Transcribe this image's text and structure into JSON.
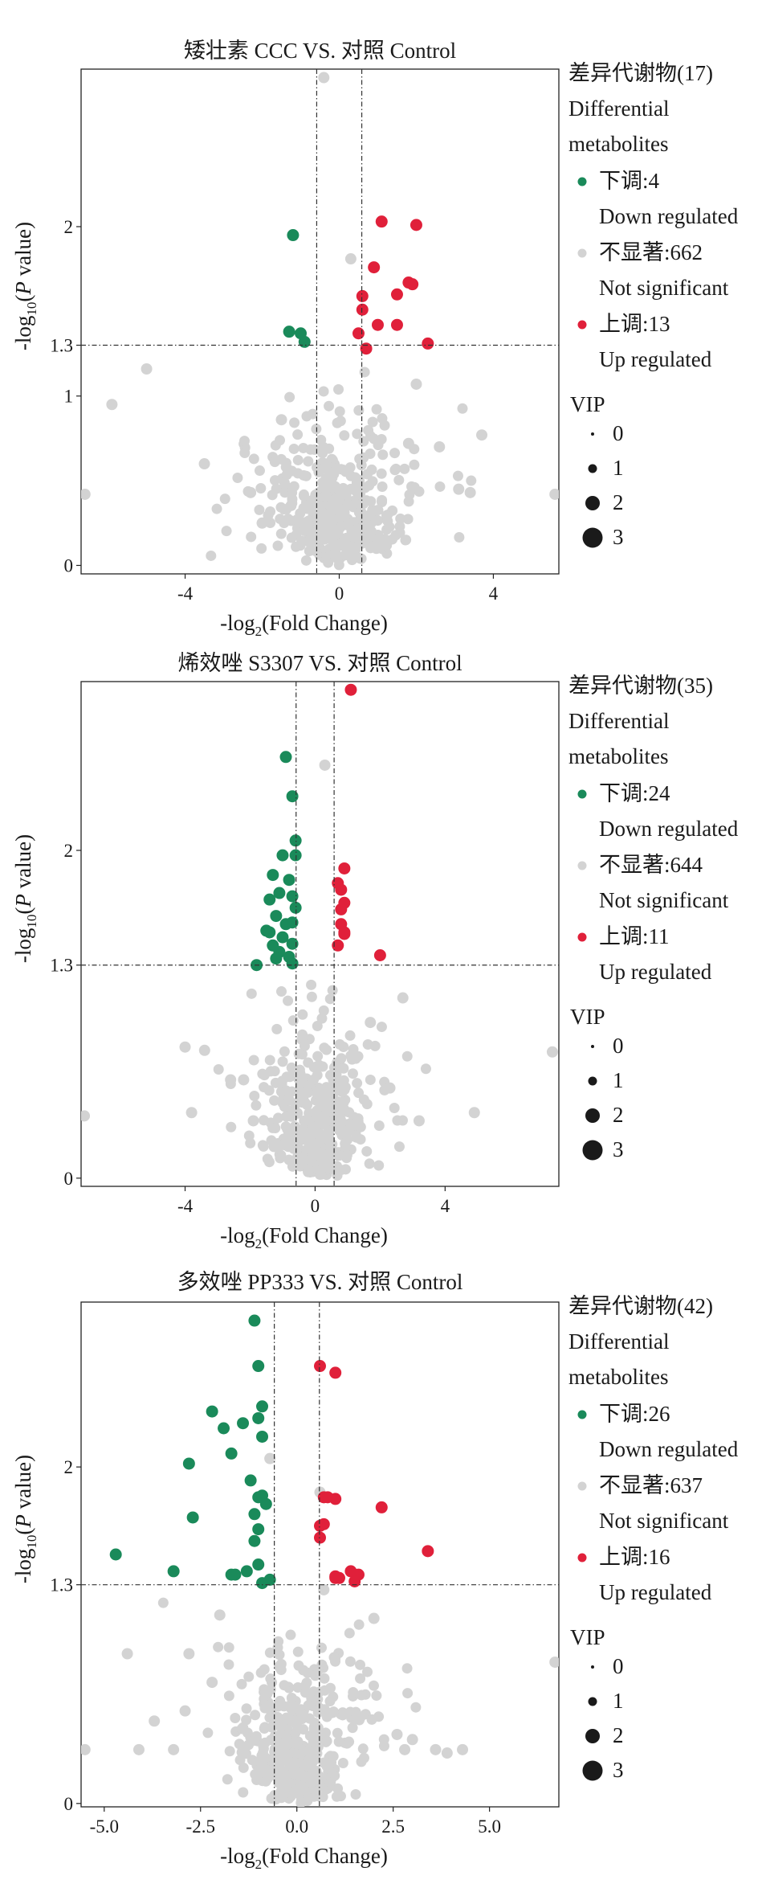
{
  "colors": {
    "down": "#1a8a5a",
    "ns": "#d3d3d3",
    "up": "#e0203a",
    "axis": "#222222",
    "legend_dot": "#1a1a1a"
  },
  "chart_data": [
    {
      "type": "scatter",
      "title": "矮壮素 CCC VS. 对照 Control",
      "xlabel_pre": "-log",
      "xlabel_sub": "2",
      "xlabel_post": "(Fold Change)",
      "ylabel_pre": "-log",
      "ylabel_sub": "10",
      "ylabel_post": "(",
      "ylabel_italic": "P",
      "ylabel_end": " value)",
      "xlim": [
        -6.7,
        5.7
      ],
      "ylim": [
        -0.05,
        2.93
      ],
      "xticks": [
        {
          "v": -4,
          "label": "-4"
        },
        {
          "v": 0,
          "label": "0"
        },
        {
          "v": 4,
          "label": "4"
        }
      ],
      "yticks": [
        {
          "v": 0,
          "label": "0"
        },
        {
          "v": 1,
          "label": "1"
        },
        {
          "v": 1.3,
          "label": "1.3"
        },
        {
          "v": 2,
          "label": "2"
        }
      ],
      "vlines": [
        -0.585,
        0.585
      ],
      "hline": 1.3,
      "legend": {
        "title1": "差异代谢物(17)",
        "title2": "Differential",
        "title3": "metabolites",
        "items": [
          {
            "label_cn": "下调:4",
            "label_en": "Down regulated",
            "key": "down"
          },
          {
            "label_cn": "不显著:662",
            "label_en": "Not significant",
            "key": "ns"
          },
          {
            "label_cn": "上调:13",
            "label_en": "Up regulated",
            "key": "up"
          }
        ],
        "vip_title": "VIP",
        "vip": [
          {
            "label": "0",
            "value": 0
          },
          {
            "label": "1",
            "value": 1
          },
          {
            "label": "2",
            "value": 2
          },
          {
            "label": "3",
            "value": 3
          }
        ]
      },
      "down": [
        [
          -1.2,
          1.95
        ],
        [
          -1.3,
          1.38
        ],
        [
          -1.0,
          1.37
        ],
        [
          -0.9,
          1.32
        ]
      ],
      "up": [
        [
          1.1,
          2.03
        ],
        [
          2.0,
          2.01
        ],
        [
          0.9,
          1.76
        ],
        [
          1.5,
          1.6
        ],
        [
          1.9,
          1.66
        ],
        [
          1.8,
          1.67
        ],
        [
          0.6,
          1.59
        ],
        [
          0.6,
          1.51
        ],
        [
          1.5,
          1.42
        ],
        [
          0.5,
          1.37
        ],
        [
          0.7,
          1.28
        ],
        [
          2.3,
          1.31
        ],
        [
          1.0,
          1.42
        ]
      ],
      "ns_extra": [
        [
          -0.4,
          2.88
        ],
        [
          0.3,
          1.81
        ],
        [
          -5.0,
          1.16
        ],
        [
          -5.9,
          0.95
        ],
        [
          -6.6,
          0.42
        ],
        [
          5.6,
          0.42
        ],
        [
          3.7,
          0.77
        ],
        [
          3.4,
          0.43
        ],
        [
          3.1,
          0.45
        ],
        [
          2.0,
          1.07
        ],
        [
          -2.3,
          0.43
        ],
        [
          2.6,
          0.7
        ],
        [
          -1.5,
          0.86
        ],
        [
          -3.5,
          0.6
        ],
        [
          -2.0,
          0.25
        ],
        [
          1.8,
          0.72
        ]
      ],
      "ns_cloud": {
        "center": 0.0,
        "xspread": 1.2,
        "ystretch": 1.1,
        "count": 420,
        "seed": 11
      }
    },
    {
      "type": "scatter",
      "title": "烯效唑 S3307 VS. 对照 Control",
      "xlabel_pre": "-log",
      "xlabel_sub": "2",
      "xlabel_post": "(Fold Change)",
      "ylabel_pre": "-log",
      "ylabel_sub": "10",
      "ylabel_post": "(",
      "ylabel_italic": "P",
      "ylabel_end": " value)",
      "xlim": [
        -7.2,
        7.5
      ],
      "ylim": [
        -0.05,
        3.03
      ],
      "xticks": [
        {
          "v": -4,
          "label": "-4"
        },
        {
          "v": 0,
          "label": "0"
        },
        {
          "v": 4,
          "label": "4"
        }
      ],
      "yticks": [
        {
          "v": 0,
          "label": "0"
        },
        {
          "v": 1.3,
          "label": "1.3"
        },
        {
          "v": 2,
          "label": "2"
        }
      ],
      "vlines": [
        -0.585,
        0.585
      ],
      "hline": 1.3,
      "legend": {
        "title1": "差异代谢物(35)",
        "title2": "Differential",
        "title3": "metabolites",
        "items": [
          {
            "label_cn": "下调:24",
            "label_en": "Down regulated",
            "key": "down"
          },
          {
            "label_cn": "不显著:644",
            "label_en": "Not significant",
            "key": "ns"
          },
          {
            "label_cn": "上调:11",
            "label_en": "Up regulated",
            "key": "up"
          }
        ],
        "vip_title": "VIP",
        "vip": [
          {
            "label": "0",
            "value": 0
          },
          {
            "label": "1",
            "value": 1
          },
          {
            "label": "2",
            "value": 2
          },
          {
            "label": "3",
            "value": 3
          }
        ]
      },
      "down": [
        [
          -0.9,
          2.57
        ],
        [
          -0.7,
          2.33
        ],
        [
          -0.6,
          2.06
        ],
        [
          -1.0,
          1.97
        ],
        [
          -0.6,
          1.97
        ],
        [
          -1.3,
          1.85
        ],
        [
          -0.8,
          1.82
        ],
        [
          -1.1,
          1.74
        ],
        [
          -1.4,
          1.7
        ],
        [
          -0.7,
          1.72
        ],
        [
          -1.2,
          1.6
        ],
        [
          -0.9,
          1.55
        ],
        [
          -0.7,
          1.56
        ],
        [
          -1.5,
          1.51
        ],
        [
          -1.0,
          1.47
        ],
        [
          -1.3,
          1.42
        ],
        [
          -0.7,
          1.43
        ],
        [
          -1.1,
          1.38
        ],
        [
          -0.8,
          1.35
        ],
        [
          -0.7,
          1.31
        ],
        [
          -1.8,
          1.3
        ],
        [
          -1.2,
          1.34
        ],
        [
          -1.4,
          1.5
        ],
        [
          -0.6,
          1.65
        ]
      ],
      "up": [
        [
          1.1,
          2.98
        ],
        [
          0.9,
          1.89
        ],
        [
          0.9,
          1.68
        ],
        [
          0.8,
          1.64
        ],
        [
          0.8,
          1.55
        ],
        [
          0.9,
          1.49
        ],
        [
          0.7,
          1.42
        ],
        [
          2.0,
          1.36
        ],
        [
          0.8,
          1.76
        ],
        [
          0.7,
          1.8
        ],
        [
          0.9,
          1.5
        ]
      ],
      "ns_extra": [
        [
          0.3,
          2.52
        ],
        [
          -7.1,
          0.38
        ],
        [
          7.3,
          0.77
        ],
        [
          4.9,
          0.4
        ],
        [
          3.2,
          0.35
        ],
        [
          -3.8,
          0.4
        ],
        [
          -3.4,
          0.78
        ],
        [
          -2.2,
          0.6
        ],
        [
          -4.0,
          0.8
        ],
        [
          2.7,
          1.1
        ],
        [
          -2.6,
          0.6
        ],
        [
          1.7,
          0.95
        ],
        [
          -1.9,
          0.35
        ],
        [
          2.3,
          0.55
        ]
      ],
      "ns_cloud": {
        "center": 0.0,
        "xspread": 1.05,
        "ystretch": 1.2,
        "count": 420,
        "seed": 23
      }
    },
    {
      "type": "scatter",
      "title": "多效唑 PP333 VS. 对照 Control",
      "xlabel_pre": "-log",
      "xlabel_sub": "2",
      "xlabel_post": "(Fold Change)",
      "ylabel_pre": "-log",
      "ylabel_sub": "10",
      "ylabel_post": "(",
      "ylabel_italic": "P",
      "ylabel_end": " value)",
      "xlim": [
        -5.6,
        6.8
      ],
      "ylim": [
        -0.02,
        2.98
      ],
      "xticks": [
        {
          "v": -5,
          "label": "-5.0"
        },
        {
          "v": -2.5,
          "label": "-2.5"
        },
        {
          "v": 0,
          "label": "0.0"
        },
        {
          "v": 2.5,
          "label": "2.5"
        },
        {
          "v": 5,
          "label": "5.0"
        }
      ],
      "yticks": [
        {
          "v": 0,
          "label": "0"
        },
        {
          "v": 1.3,
          "label": "1.3"
        },
        {
          "v": 2,
          "label": "2"
        }
      ],
      "vlines": [
        -0.585,
        0.585
      ],
      "hline": 1.3,
      "legend": {
        "title1": "差异代谢物(42)",
        "title2": "Differential",
        "title3": "metabolites",
        "items": [
          {
            "label_cn": "下调:26",
            "label_en": "Down regulated",
            "key": "down"
          },
          {
            "label_cn": "不显著:637",
            "label_en": "Not significant",
            "key": "ns"
          },
          {
            "label_cn": "上调:16",
            "label_en": "Up regulated",
            "key": "up"
          }
        ],
        "vip_title": "VIP",
        "vip": [
          {
            "label": "0",
            "value": 0
          },
          {
            "label": "1",
            "value": 1
          },
          {
            "label": "2",
            "value": 2
          },
          {
            "label": "3",
            "value": 3
          }
        ]
      },
      "down": [
        [
          -1.1,
          2.87
        ],
        [
          -1.0,
          2.6
        ],
        [
          -0.9,
          2.36
        ],
        [
          -2.2,
          2.33
        ],
        [
          -1.4,
          2.26
        ],
        [
          -1.0,
          2.29
        ],
        [
          -1.9,
          2.23
        ],
        [
          -1.7,
          2.08
        ],
        [
          -0.9,
          2.18
        ],
        [
          -2.8,
          2.02
        ],
        [
          -1.2,
          1.92
        ],
        [
          -1.0,
          1.82
        ],
        [
          -0.9,
          1.83
        ],
        [
          -2.7,
          1.7
        ],
        [
          -1.1,
          1.72
        ],
        [
          -1.0,
          1.63
        ],
        [
          -1.1,
          1.56
        ],
        [
          -4.7,
          1.48
        ],
        [
          -3.2,
          1.38
        ],
        [
          -1.3,
          1.38
        ],
        [
          -1.7,
          1.36
        ],
        [
          -1.6,
          1.36
        ],
        [
          -0.9,
          1.31
        ],
        [
          -0.7,
          1.33
        ],
        [
          -1.0,
          1.42
        ],
        [
          -0.8,
          1.78
        ]
      ],
      "up": [
        [
          0.6,
          2.6
        ],
        [
          1.0,
          2.56
        ],
        [
          0.8,
          1.82
        ],
        [
          1.0,
          1.81
        ],
        [
          2.2,
          1.76
        ],
        [
          0.6,
          1.65
        ],
        [
          0.6,
          1.58
        ],
        [
          3.4,
          1.5
        ],
        [
          1.6,
          1.36
        ],
        [
          1.0,
          1.35
        ],
        [
          1.0,
          1.34
        ],
        [
          1.5,
          1.32
        ],
        [
          0.7,
          1.82
        ],
        [
          1.1,
          1.34
        ],
        [
          0.7,
          1.66
        ],
        [
          1.4,
          1.38
        ]
      ],
      "ns_extra": [
        [
          -0.7,
          2.05
        ],
        [
          0.6,
          1.85
        ],
        [
          -5.5,
          0.32
        ],
        [
          -4.4,
          0.89
        ],
        [
          -4.1,
          0.32
        ],
        [
          -3.2,
          0.32
        ],
        [
          -2.8,
          0.89
        ],
        [
          -2.9,
          0.55
        ],
        [
          6.7,
          0.84
        ],
        [
          4.3,
          0.32
        ],
        [
          3.9,
          0.3
        ],
        [
          3.6,
          0.32
        ],
        [
          2.6,
          0.41
        ],
        [
          2.8,
          0.32
        ],
        [
          3.0,
          0.38
        ],
        [
          -3.7,
          0.49
        ],
        [
          0.7,
          1.27
        ],
        [
          -2.0,
          1.12
        ],
        [
          2.0,
          1.1
        ],
        [
          -2.2,
          0.72
        ]
      ],
      "ns_cloud": {
        "center": 0.05,
        "xspread": 1.0,
        "ystretch": 1.15,
        "count": 420,
        "seed": 37
      }
    }
  ]
}
